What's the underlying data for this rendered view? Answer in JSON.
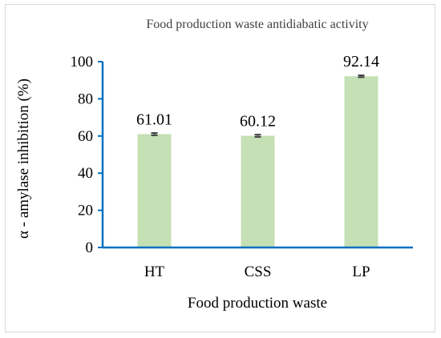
{
  "chart_data": {
    "type": "bar",
    "title": "Food production waste antidiabatic activity",
    "xlabel": "Food production waste",
    "ylabel": "α - amylase inhibition (%)",
    "categories": [
      "HT",
      "CSS",
      "LP"
    ],
    "values": [
      61.01,
      60.12,
      92.14
    ],
    "error": [
      0.6,
      0.6,
      0.5
    ],
    "data_labels": [
      "61.01",
      "60.12",
      "92.14"
    ],
    "ylim": [
      0,
      100
    ],
    "yticks": [
      0,
      20,
      40,
      60,
      80,
      100
    ],
    "grid": false,
    "legend": "none",
    "colors": {
      "bar": "#c5e0b4",
      "axis": "#0070c0",
      "error_bar": "#404040"
    }
  }
}
